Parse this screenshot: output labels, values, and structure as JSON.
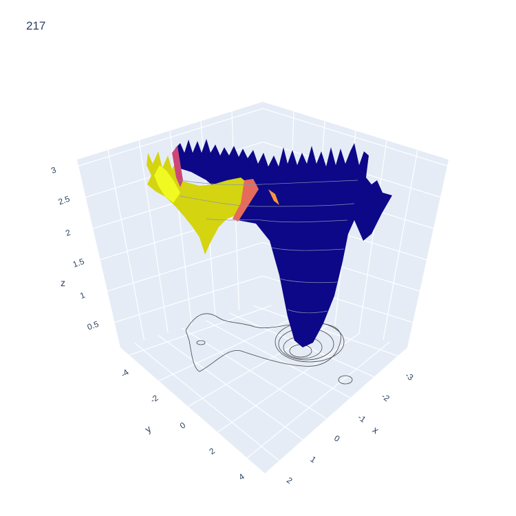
{
  "title": "217",
  "chart_data": {
    "type": "surface",
    "title": "217",
    "colorscale": "plasma",
    "colors": {
      "low": "#0d0887",
      "mid": "#cc4778",
      "high": "#f0f921",
      "scene_bg": "#e5ecf6",
      "grid": "#ffffff"
    },
    "axes": {
      "x": {
        "label": "x",
        "ticks": [
          "-3",
          "-2",
          "-1",
          "0",
          "1",
          "2"
        ],
        "range": [
          -3.4,
          2.6
        ]
      },
      "y": {
        "label": "y",
        "ticks": [
          "-4",
          "-2",
          "0",
          "2",
          "4"
        ],
        "range": [
          -4.6,
          5.2
        ]
      },
      "z": {
        "label": "z",
        "ticks": [
          "0.5",
          "1",
          "1.5",
          "2",
          "2.5",
          "3"
        ],
        "range": [
          0.1,
          3.1
        ]
      }
    },
    "surface_summary": {
      "baseline_z": 2.8,
      "minimum": {
        "x": 0.6,
        "y": 0.2,
        "z": 0.7
      },
      "high_region": {
        "x": -1.5,
        "y": -3.5,
        "z": 2.9
      }
    },
    "contours_projected_on_floor": true,
    "grid": true
  }
}
